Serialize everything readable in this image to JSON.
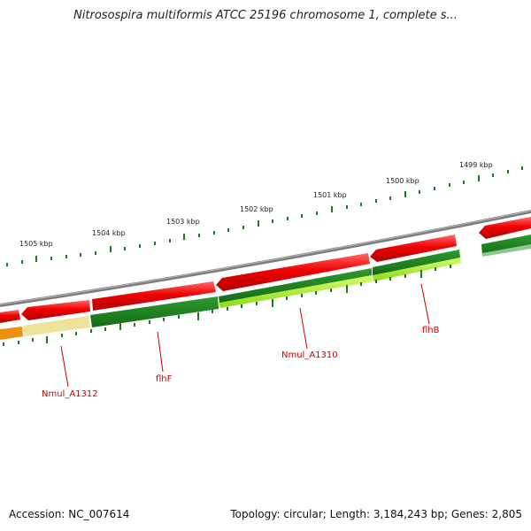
{
  "title": "Nitrosospira multiformis ATCC 25196 chromosome 1, complete s...",
  "accession": "Accession: NC_007614",
  "summary": "Topology: circular; Length: 3,184,243 bp; Genes: 2,805",
  "scale_labels": [
    "1505 kbp",
    "1504 kbp",
    "1503 kbp",
    "1502 kbp",
    "1501 kbp",
    "1500 kbp",
    "1499 kbp"
  ],
  "gene_labels": [
    "Nmul_A1312",
    "flhF",
    "Nmul_A1310",
    "flhB"
  ],
  "colors": {
    "backbone": "#8a8a8a",
    "forward_gene": "#e60000",
    "reverse_dark": "#1f8a1f",
    "reverse_light": "#a8e62e",
    "pale": "#ede39a",
    "orange": "#f0900a",
    "tick": "#1e7a1e",
    "label": "#cc0000"
  }
}
